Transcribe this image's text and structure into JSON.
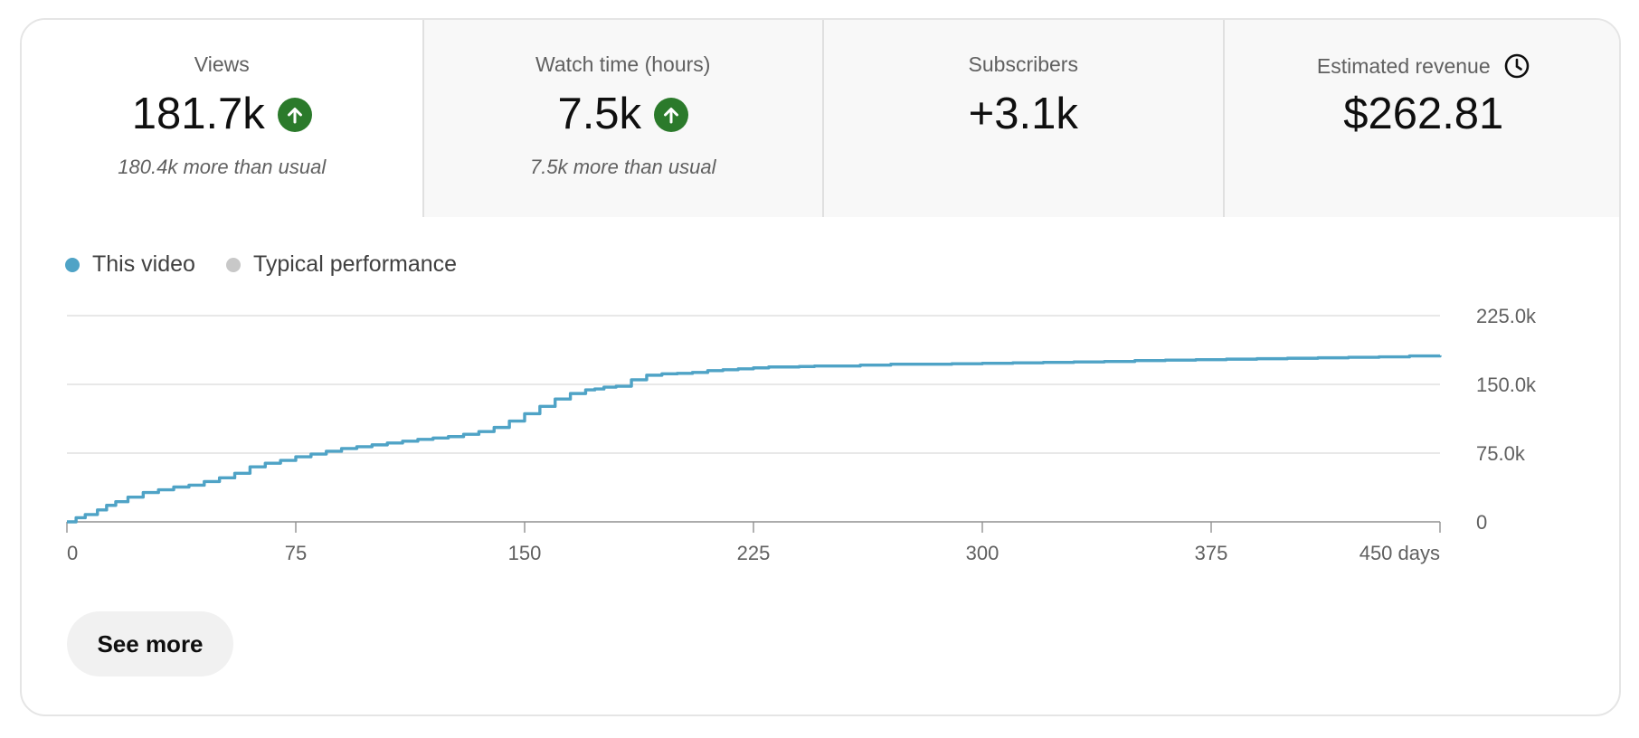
{
  "metrics": [
    {
      "title": "Views",
      "value": "181.7k",
      "trend": "up",
      "note": "180.4k more than usual"
    },
    {
      "title": "Watch time (hours)",
      "value": "7.5k",
      "trend": "up",
      "note": "7.5k more than usual"
    },
    {
      "title": "Subscribers",
      "value": "+3.1k",
      "trend": "",
      "note": ""
    },
    {
      "title": "Estimated revenue",
      "value": "$262.81",
      "trend": "",
      "note": ""
    }
  ],
  "legend": {
    "this_video": "This video",
    "typical": "Typical performance"
  },
  "colors": {
    "this_video": "#4fa3c6",
    "typical": "#c8c8c8",
    "trend_up": "#2b7a2b",
    "grid": "#e0e0e0",
    "axis": "#909090"
  },
  "icons": {
    "trend_up": "arrow-up-circle-icon",
    "revenue_info": "clock-icon"
  },
  "see_more_label": "See more",
  "chart_data": {
    "type": "line",
    "x_tick_labels": [
      "0",
      "75",
      "150",
      "225",
      "300",
      "375",
      "450 days"
    ],
    "x_ticks": [
      0,
      75,
      150,
      225,
      300,
      375,
      450
    ],
    "y_tick_labels": [
      "0",
      "75.0k",
      "150.0k",
      "225.0k"
    ],
    "y_ticks": [
      0,
      75000,
      150000,
      225000
    ],
    "xlim": [
      0,
      450
    ],
    "ylim": [
      0,
      225000
    ],
    "grid": true,
    "legend_position": "top-left",
    "series": [
      {
        "name": "This video",
        "step": true,
        "x": [
          0,
          3,
          6,
          10,
          13,
          16,
          20,
          25,
          30,
          35,
          40,
          45,
          50,
          55,
          60,
          65,
          70,
          75,
          80,
          85,
          90,
          95,
          100,
          105,
          110,
          115,
          120,
          125,
          130,
          135,
          140,
          145,
          150,
          155,
          160,
          165,
          170,
          173,
          176,
          180,
          185,
          190,
          195,
          200,
          205,
          210,
          215,
          220,
          225,
          230,
          235,
          240,
          245,
          250,
          260,
          270,
          280,
          290,
          300,
          310,
          320,
          330,
          340,
          350,
          360,
          370,
          380,
          390,
          400,
          410,
          420,
          430,
          440,
          450
        ],
        "values": [
          0,
          4500,
          8000,
          13000,
          18000,
          22000,
          27000,
          32000,
          35000,
          38000,
          40000,
          44000,
          48000,
          53000,
          60000,
          64000,
          67000,
          71000,
          74000,
          77000,
          80000,
          82000,
          84000,
          86000,
          88000,
          90000,
          91500,
          93000,
          95500,
          98500,
          103000,
          110000,
          118000,
          126000,
          134000,
          140000,
          144000,
          145000,
          147000,
          148000,
          155000,
          160000,
          161500,
          162000,
          163000,
          165000,
          166000,
          167000,
          168000,
          169000,
          169000,
          169500,
          170000,
          170000,
          171000,
          172000,
          172000,
          172500,
          173000,
          173500,
          174000,
          174500,
          175000,
          176000,
          176500,
          177000,
          177500,
          178000,
          178500,
          179000,
          179500,
          180000,
          181000,
          181700
        ]
      }
    ]
  }
}
